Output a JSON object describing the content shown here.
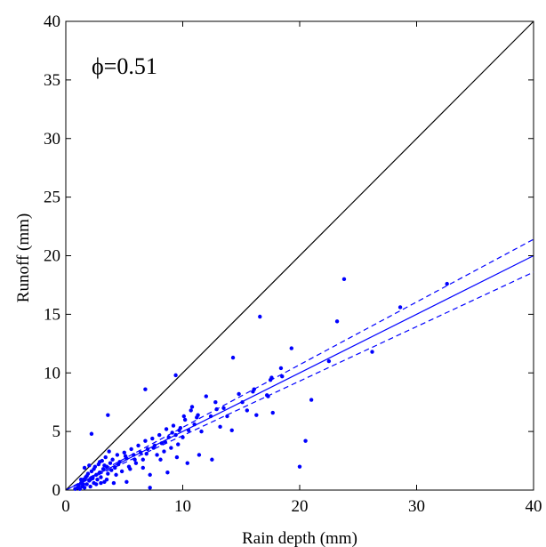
{
  "chart_data": {
    "type": "scatter",
    "title": "",
    "xlabel": "Rain depth (mm)",
    "ylabel": "Runoff (mm)",
    "xlim": [
      0,
      40
    ],
    "ylim": [
      0,
      40
    ],
    "xticks": [
      0,
      10,
      20,
      30,
      40
    ],
    "yticks": [
      0,
      5,
      10,
      15,
      20,
      25,
      30,
      35,
      40
    ],
    "annotation": "ϕ=0.51",
    "grid": false,
    "colors": {
      "points": "#0000ff",
      "fit": "#0000ff",
      "one_to_one": "#000000"
    },
    "one_to_one_line": {
      "x": [
        0,
        40
      ],
      "y": [
        0,
        40
      ]
    },
    "fit_line": {
      "x": [
        0,
        40
      ],
      "y": [
        0,
        20
      ]
    },
    "conf_upper": {
      "x": [
        0,
        40
      ],
      "y": [
        0,
        21.4
      ]
    },
    "conf_lower": {
      "x": [
        0,
        40
      ],
      "y": [
        0,
        18.6
      ]
    },
    "points": [
      [
        0.8,
        0.1
      ],
      [
        1.0,
        0.2
      ],
      [
        1.1,
        0.4
      ],
      [
        1.2,
        0.1
      ],
      [
        1.3,
        0.6
      ],
      [
        1.4,
        0.3
      ],
      [
        1.5,
        0.9
      ],
      [
        1.6,
        0.2
      ],
      [
        1.7,
        1.1
      ],
      [
        1.8,
        0.5
      ],
      [
        1.9,
        1.4
      ],
      [
        2.0,
        0.8
      ],
      [
        2.1,
        0.3
      ],
      [
        2.2,
        1.6
      ],
      [
        2.3,
        1.0
      ],
      [
        2.4,
        0.6
      ],
      [
        2.5,
        2.0
      ],
      [
        2.6,
        1.3
      ],
      [
        2.7,
        0.9
      ],
      [
        2.8,
        2.2
      ],
      [
        2.9,
        1.5
      ],
      [
        3.0,
        1.1
      ],
      [
        3.1,
        2.5
      ],
      [
        3.2,
        1.8
      ],
      [
        3.3,
        0.7
      ],
      [
        3.4,
        2.8
      ],
      [
        3.5,
        2.0
      ],
      [
        3.6,
        1.4
      ],
      [
        3.7,
        3.3
      ],
      [
        3.8,
        2.3
      ],
      [
        3.9,
        1.7
      ],
      [
        4.0,
        2.6
      ],
      [
        4.2,
        1.9
      ],
      [
        4.4,
        3.0
      ],
      [
        4.6,
        2.4
      ],
      [
        4.8,
        1.6
      ],
      [
        5.0,
        3.2
      ],
      [
        5.2,
        2.7
      ],
      [
        5.4,
        2.0
      ],
      [
        5.6,
        3.5
      ],
      [
        5.8,
        3.0
      ],
      [
        6.0,
        2.3
      ],
      [
        6.2,
        3.8
      ],
      [
        6.4,
        3.2
      ],
      [
        6.6,
        2.6
      ],
      [
        6.8,
        4.2
      ],
      [
        7.0,
        3.5
      ],
      [
        7.2,
        1.3
      ],
      [
        7.4,
        4.4
      ],
      [
        7.6,
        3.8
      ],
      [
        7.8,
        3.0
      ],
      [
        8.0,
        4.7
      ],
      [
        8.2,
        4.0
      ],
      [
        8.4,
        3.3
      ],
      [
        8.6,
        5.2
      ],
      [
        8.8,
        4.5
      ],
      [
        9.0,
        3.6
      ],
      [
        9.2,
        5.5
      ],
      [
        9.4,
        4.7
      ],
      [
        9.6,
        3.9
      ],
      [
        9.8,
        5.3
      ],
      [
        10.0,
        4.5
      ],
      [
        10.2,
        6.0
      ],
      [
        10.5,
        5.1
      ],
      [
        10.8,
        7.1
      ],
      [
        11.0,
        5.6
      ],
      [
        11.3,
        6.4
      ],
      [
        11.6,
        5.0
      ],
      [
        12.0,
        8.0
      ],
      [
        12.4,
        6.3
      ],
      [
        12.8,
        7.5
      ],
      [
        13.2,
        5.4
      ],
      [
        13.8,
        6.3
      ],
      [
        14.2,
        5.1
      ],
      [
        14.3,
        11.3
      ],
      [
        14.8,
        8.2
      ],
      [
        15.5,
        6.8
      ],
      [
        16.1,
        8.6
      ],
      [
        16.6,
        14.8
      ],
      [
        17.2,
        8.1
      ],
      [
        17.6,
        9.6
      ],
      [
        17.7,
        6.6
      ],
      [
        18.4,
        10.4
      ],
      [
        19.3,
        12.1
      ],
      [
        20.0,
        2.0
      ],
      [
        20.5,
        4.2
      ],
      [
        21.0,
        7.7
      ],
      [
        22.5,
        11.0
      ],
      [
        23.2,
        14.4
      ],
      [
        23.8,
        18.0
      ],
      [
        26.2,
        11.8
      ],
      [
        28.6,
        15.6
      ],
      [
        32.6,
        17.6
      ],
      [
        6.8,
        8.6
      ],
      [
        9.4,
        9.8
      ],
      [
        2.2,
        4.8
      ],
      [
        3.6,
        6.4
      ],
      [
        7.2,
        0.2
      ],
      [
        5.2,
        0.7
      ],
      [
        4.1,
        0.6
      ],
      [
        1.6,
        1.9
      ],
      [
        2.0,
        2.1
      ],
      [
        2.4,
        1.8
      ],
      [
        2.9,
        2.4
      ],
      [
        3.3,
        2.1
      ],
      [
        4.5,
        2.2
      ],
      [
        5.1,
        2.9
      ],
      [
        5.9,
        2.6
      ],
      [
        6.9,
        3.1
      ],
      [
        7.5,
        3.6
      ],
      [
        8.5,
        4.1
      ],
      [
        9.1,
        4.9
      ],
      [
        9.7,
        5.1
      ],
      [
        11.2,
        6.2
      ],
      [
        12.9,
        6.9
      ],
      [
        15.1,
        7.5
      ],
      [
        16.0,
        8.4
      ],
      [
        17.5,
        9.4
      ],
      [
        18.5,
        9.7
      ],
      [
        13.5,
        7.0
      ],
      [
        1.3,
        0.9
      ],
      [
        1.5,
        0.5
      ],
      [
        1.8,
        1.2
      ],
      [
        2.1,
        0.9
      ],
      [
        2.6,
        0.5
      ],
      [
        3.0,
        0.6
      ],
      [
        3.5,
        0.9
      ],
      [
        4.3,
        1.3
      ],
      [
        5.5,
        1.8
      ],
      [
        6.6,
        1.9
      ],
      [
        8.1,
        2.6
      ],
      [
        8.7,
        1.5
      ],
      [
        9.5,
        2.8
      ],
      [
        10.4,
        2.3
      ],
      [
        11.4,
        3.0
      ],
      [
        12.5,
        2.6
      ],
      [
        16.3,
        6.4
      ],
      [
        17.3,
        8.0
      ],
      [
        10.1,
        6.3
      ],
      [
        10.7,
        6.8
      ]
    ]
  }
}
